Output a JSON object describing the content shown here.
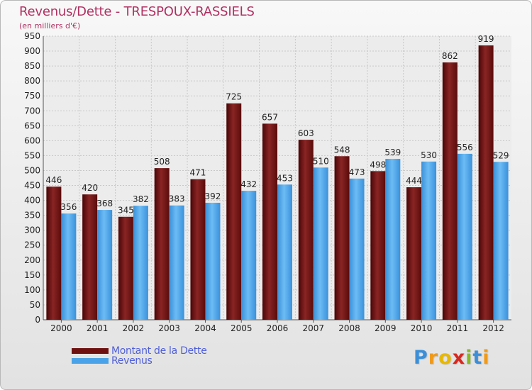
{
  "title": "Revenus/Dette - TRESPOUX-RASSIELS",
  "subtitle": "(en milliers d'€)",
  "colors": {
    "dette": "#6e1010",
    "revenus": "#4aa3e8",
    "title": "#b03060",
    "legend_text": "#5060d8"
  },
  "logo": {
    "letters": [
      "P",
      "r",
      "o",
      "x",
      "i",
      "t",
      "i"
    ],
    "colors": [
      "#3b8fd8",
      "#f09a1a",
      "#e8b800",
      "#d8281e",
      "#88bb22",
      "#3b8fd8",
      "#f09a1a"
    ]
  },
  "chart_data": {
    "type": "bar",
    "categories": [
      "2000",
      "2001",
      "2002",
      "2003",
      "2004",
      "2005",
      "2006",
      "2007",
      "2008",
      "2009",
      "2010",
      "2011",
      "2012"
    ],
    "series": [
      {
        "name": "Montant de la Dette",
        "values": [
          446,
          420,
          345,
          508,
          471,
          725,
          657,
          603,
          548,
          498,
          444,
          862,
          919
        ]
      },
      {
        "name": "Revenus",
        "values": [
          356,
          368,
          382,
          383,
          392,
          432,
          453,
          510,
          473,
          539,
          530,
          556,
          529
        ]
      }
    ],
    "ylim": [
      0,
      950
    ],
    "ytick_step": 50,
    "grid": true,
    "legend_position": "bottom-left"
  }
}
